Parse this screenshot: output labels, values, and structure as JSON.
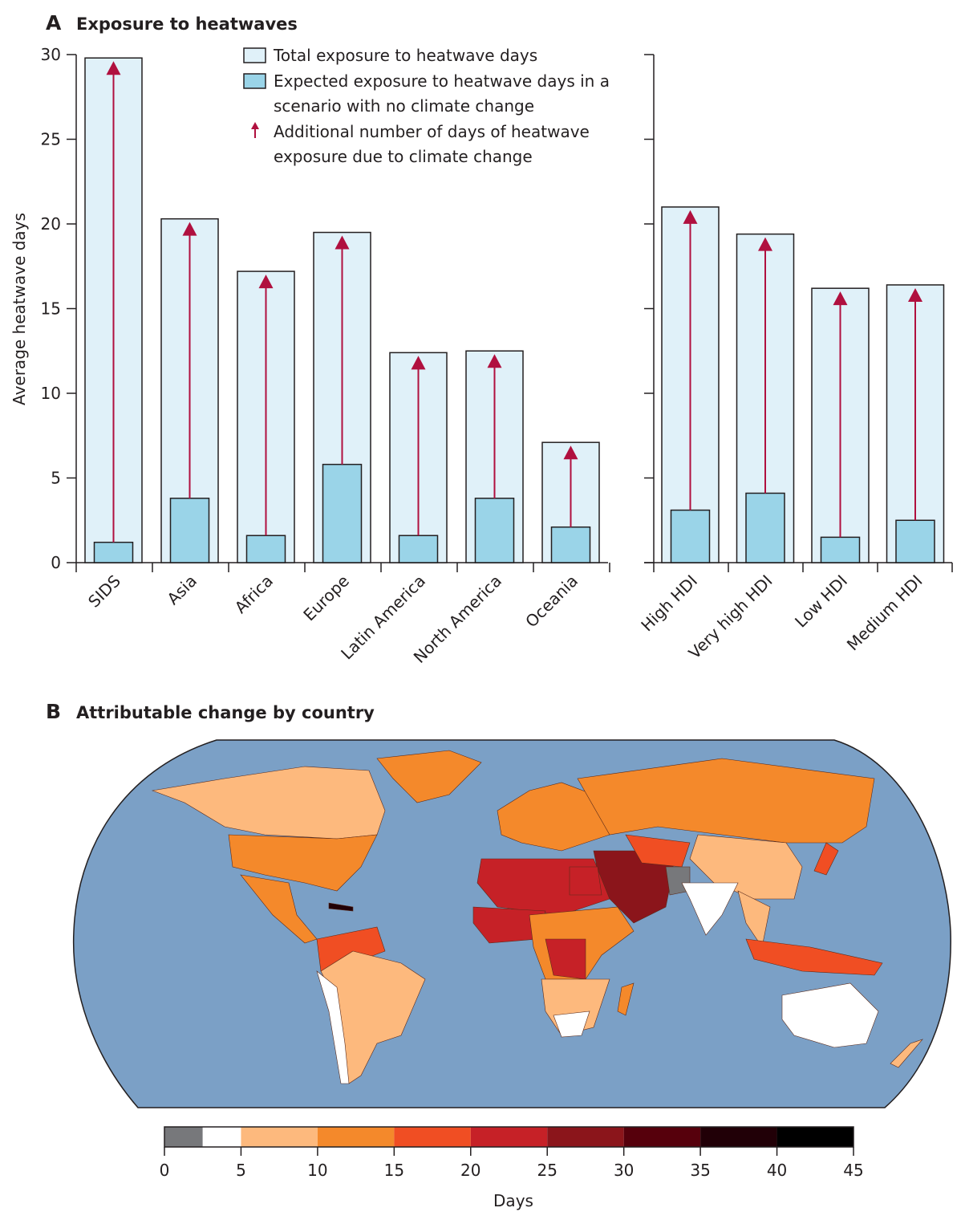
{
  "chart_data": [
    {
      "panel": "A",
      "title": "Exposure to heatwaves",
      "type": "bar",
      "ylabel": "Average heatwave days",
      "ylim": [
        0,
        30
      ],
      "yticks": [
        0,
        5,
        10,
        15,
        20,
        25,
        30
      ],
      "legend": {
        "placement": "top-center",
        "entries": [
          "Total exposure to heatwave days",
          "Expected exposure to heatwave days in a scenario with no climate change",
          "Additional number of days of heatwave exposure due to climate change"
        ],
        "entry_lines": [
          [
            "Total exposure to heatwave days"
          ],
          [
            "Expected exposure to heatwave days in a",
            "scenario with no climate change"
          ],
          [
            "Additional number of days of heatwave",
            "exposure due to climate change"
          ]
        ]
      },
      "colors": {
        "total": "#e0f1f9",
        "baseline": "#9ad4e8",
        "arrow": "#b0103f",
        "outline": "#231f20"
      },
      "groups": [
        {
          "categories": [
            "SIDS",
            "Asia",
            "Africa",
            "Europe",
            "Latin America",
            "North America",
            "Oceania"
          ],
          "total": [
            29.8,
            20.3,
            17.2,
            19.5,
            12.4,
            12.5,
            7.1
          ],
          "no_climate_change": [
            1.2,
            3.8,
            1.6,
            5.8,
            1.6,
            3.8,
            2.1
          ]
        },
        {
          "categories": [
            "High HDI",
            "Very high HDI",
            "Low HDI",
            "Medium HDI"
          ],
          "total": [
            21.0,
            19.4,
            16.2,
            16.4
          ],
          "no_climate_change": [
            3.1,
            4.1,
            1.5,
            2.5
          ]
        }
      ]
    },
    {
      "panel": "B",
      "title": "Attributable change by country",
      "type": "choropleth-map",
      "colorbar": {
        "label": "Days",
        "ticks": [
          0,
          5,
          10,
          15,
          20,
          25,
          30,
          35,
          40,
          45
        ],
        "bins": [
          {
            "range": [
              0,
              2.5
            ],
            "color": "#77787b"
          },
          {
            "range": [
              2.5,
              5
            ],
            "color": "#ffffff"
          },
          {
            "range": [
              5,
              10
            ],
            "color": "#fdb97d"
          },
          {
            "range": [
              10,
              15
            ],
            "color": "#f4892b"
          },
          {
            "range": [
              15,
              20
            ],
            "color": "#f04e23"
          },
          {
            "range": [
              20,
              25
            ],
            "color": "#c62127"
          },
          {
            "range": [
              25,
              30
            ],
            "color": "#8b151b"
          },
          {
            "range": [
              30,
              35
            ],
            "color": "#56000c"
          },
          {
            "range": [
              35,
              40
            ],
            "color": "#210007"
          },
          {
            "range": [
              40,
              45
            ],
            "color": "#000000"
          }
        ]
      },
      "ocean_color": "#7ba0c6"
    }
  ]
}
